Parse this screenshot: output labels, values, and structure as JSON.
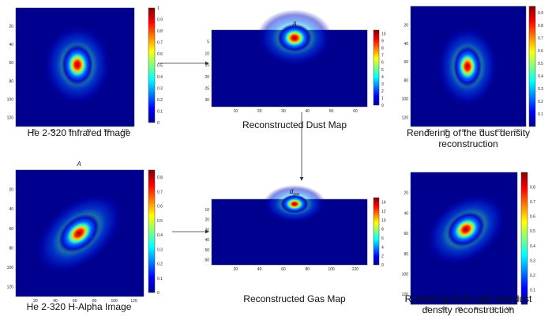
{
  "panels": [
    {
      "caption": [
        "He 2-320 Infrared Image"
      ],
      "xticks": [
        "20",
        "40",
        "60",
        "80",
        "100",
        "120"
      ],
      "yticks": [
        "20",
        "40",
        "60",
        "80",
        "100",
        "120"
      ],
      "cbticks": [
        "0",
        "0.1",
        "0.2",
        "0.3",
        "0.4",
        "0.5",
        "0.6",
        "0.7",
        "0.8",
        "0.9",
        "1"
      ]
    },
    {
      "title": "A",
      "caption": [
        "Reconstructed Dust Map"
      ],
      "xticks": [
        "10",
        "20",
        "30",
        "40",
        "50",
        "60"
      ],
      "yticks": [
        "5",
        "10",
        "15",
        "20",
        "25",
        "30"
      ],
      "cbticks": [
        "0",
        "1",
        "2",
        "3",
        "4",
        "5",
        "6",
        "7",
        "8",
        "9",
        "10"
      ]
    },
    {
      "caption": [
        "Rendering of the dust density",
        "reconstruction"
      ],
      "xticks": [
        "20",
        "40",
        "60",
        "80",
        "100",
        "120"
      ],
      "yticks": [
        "20",
        "40",
        "60",
        "80",
        "100",
        "120"
      ],
      "cbticks": [
        "0.1",
        "0.2",
        "0.3",
        "0.4",
        "0.5",
        "0.6",
        "0.7",
        "0.8",
        "0.9"
      ]
    },
    {
      "title": "A",
      "caption": [
        "He 2-320 H-Alpha Image"
      ],
      "xticks": [
        "20",
        "40",
        "60",
        "80",
        "100",
        "120"
      ],
      "yticks": [
        "20",
        "40",
        "60",
        "80",
        "100",
        "120"
      ],
      "cbticks": [
        "0",
        "0.1",
        "0.2",
        "0.3",
        "0.4",
        "0.5",
        "0.6",
        "0.7",
        "0.8"
      ]
    },
    {
      "title": "d",
      "title_sub": "gas",
      "caption": [
        "Reconstructed Gas Map"
      ],
      "xticks": [
        "20",
        "40",
        "60",
        "80",
        "100",
        "120"
      ],
      "yticks": [
        "10",
        "20",
        "30",
        "40",
        "50",
        "60"
      ],
      "cbticks": [
        "0",
        "2",
        "4",
        "6",
        "8",
        "10",
        "12",
        "14"
      ]
    },
    {
      "caption": [
        "Rendering of the gas and dust",
        "density reconstruction"
      ],
      "xticks": [
        "20",
        "40",
        "60",
        "80",
        "100",
        "120"
      ],
      "yticks": [
        "20",
        "40",
        "60",
        "80",
        "100",
        "120"
      ],
      "cbticks": [
        "0.1",
        "0.2",
        "0.3",
        "0.4",
        "0.5",
        "0.6",
        "0.7",
        "0.8"
      ]
    }
  ]
}
